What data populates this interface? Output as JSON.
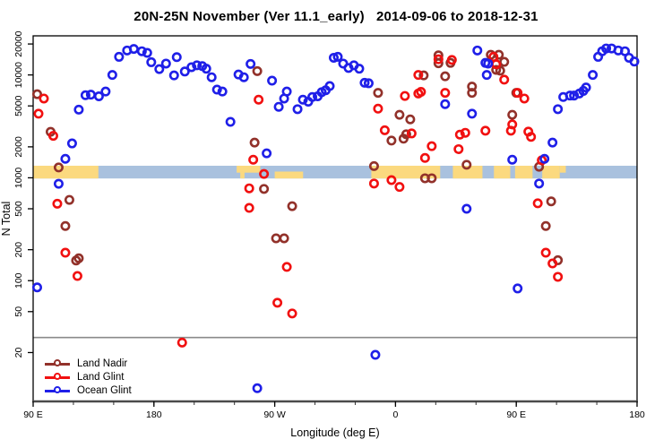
{
  "chart_data": {
    "type": "scatter",
    "title": "20N-25N November (Ver 11.1_early)   2014-09-06 to 2018-12-31",
    "xlabel": "Longitude (deg E)",
    "ylabel": "N Total",
    "x_axis": {
      "min": 90,
      "max": 540,
      "tick_values": [
        90,
        180,
        270,
        360,
        450,
        540
      ],
      "tick_labels": [
        "90 E",
        "180",
        "90 W",
        "0",
        "90 E",
        "180"
      ],
      "minor_tick_step": 30,
      "note": "longitude wraps eastward: 90E, 180, 90W, 0, 90E, 180"
    },
    "y_axis": {
      "scale": "log",
      "tick_values": [
        20,
        50,
        100,
        200,
        500,
        1000,
        2000,
        5000,
        10000,
        20000
      ],
      "tick_labels": [
        "20",
        "50",
        "100",
        "200",
        "500",
        "1000",
        "2000",
        "5000",
        "10000",
        "20000"
      ],
      "range": [
        6.7,
        24000
      ]
    },
    "reference_line_y": 28,
    "grid": "off",
    "legend_position": "bottom-left-inside",
    "map_band": {
      "description": "20N-25N latitude world-map strip drawn across plot near N=1000-1300",
      "top_value": 1310,
      "bottom_value": 985,
      "ocean_color": "#a9c1de",
      "land_color": "#fbd97f",
      "land_patches": [
        {
          "start": 0.0,
          "end": 0.108,
          "part": "full"
        },
        {
          "start": 0.337,
          "end": 0.376,
          "part": "top"
        },
        {
          "start": 0.343,
          "end": 0.35,
          "part": "bottom"
        },
        {
          "start": 0.4,
          "end": 0.447,
          "part": "bottom"
        },
        {
          "start": 0.56,
          "end": 0.674,
          "part": "full"
        },
        {
          "start": 0.695,
          "end": 0.744,
          "part": "full"
        },
        {
          "start": 0.763,
          "end": 0.79,
          "part": "full"
        },
        {
          "start": 0.798,
          "end": 0.827,
          "part": "full"
        },
        {
          "start": 0.843,
          "end": 0.872,
          "part": "full"
        },
        {
          "start": 0.872,
          "end": 0.882,
          "part": "top"
        }
      ]
    },
    "series": [
      {
        "name": "Land Nadir",
        "color": "#92312a",
        "points": [
          [
            93,
            6500
          ],
          [
            103,
            2800
          ],
          [
            109,
            1260
          ],
          [
            117,
            610
          ],
          [
            114,
            340
          ],
          [
            122,
            157
          ],
          [
            124,
            165
          ],
          [
            257,
            10900
          ],
          [
            255,
            2200
          ],
          [
            262,
            780
          ],
          [
            283,
            530
          ],
          [
            271,
            258
          ],
          [
            277,
            258
          ],
          [
            347,
            6700
          ],
          [
            363,
            4100
          ],
          [
            371,
            3700
          ],
          [
            357,
            2300
          ],
          [
            366,
            2400
          ],
          [
            368,
            2650
          ],
          [
            392,
            15500
          ],
          [
            392,
            13000
          ],
          [
            401,
            13100
          ],
          [
            397,
            9700
          ],
          [
            381,
            9900
          ],
          [
            417,
            7700
          ],
          [
            417,
            6700
          ],
          [
            344,
            1300
          ],
          [
            413,
            1340
          ],
          [
            382,
            990
          ],
          [
            387,
            990
          ],
          [
            431,
            15700
          ],
          [
            437,
            15700
          ],
          [
            441,
            13400
          ],
          [
            435,
            11200
          ],
          [
            438,
            11000
          ],
          [
            450,
            6700
          ],
          [
            447,
            4100
          ],
          [
            467,
            1280
          ],
          [
            476,
            590
          ],
          [
            472,
            340
          ],
          [
            481,
            158
          ]
        ]
      },
      {
        "name": "Land Glint",
        "color": "#f11010",
        "points": [
          [
            98,
            5900
          ],
          [
            94,
            4200
          ],
          [
            105,
            2560
          ],
          [
            108,
            560
          ],
          [
            114,
            187
          ],
          [
            123,
            111
          ],
          [
            201,
            25
          ],
          [
            258,
            5750
          ],
          [
            254,
            1500
          ],
          [
            262,
            1090
          ],
          [
            251,
            790
          ],
          [
            251,
            510
          ],
          [
            279,
            136
          ],
          [
            272,
            61
          ],
          [
            283,
            48
          ],
          [
            347,
            4700
          ],
          [
            352,
            2900
          ],
          [
            357,
            950
          ],
          [
            344,
            880
          ],
          [
            363,
            815
          ],
          [
            367,
            6250
          ],
          [
            372,
            2700
          ],
          [
            377,
            6600
          ],
          [
            377,
            10000
          ],
          [
            379,
            6850
          ],
          [
            382,
            1560
          ],
          [
            387,
            2030
          ],
          [
            392,
            14200
          ],
          [
            397,
            6700
          ],
          [
            402,
            14000
          ],
          [
            407,
            1900
          ],
          [
            408,
            2630
          ],
          [
            412,
            2740
          ],
          [
            427,
            2870
          ],
          [
            433,
            15000
          ],
          [
            435,
            12700
          ],
          [
            441,
            9000
          ],
          [
            446,
            2870
          ],
          [
            447,
            3300
          ],
          [
            451,
            6700
          ],
          [
            456,
            5900
          ],
          [
            459,
            2810
          ],
          [
            461,
            2500
          ],
          [
            466,
            565
          ],
          [
            469,
            1480
          ],
          [
            472,
            187
          ],
          [
            477,
            147
          ],
          [
            481,
            109
          ]
        ]
      },
      {
        "name": "Ocean Glint",
        "color": "#1f1fe8",
        "points": [
          [
            93,
            86
          ],
          [
            109,
            875
          ],
          [
            114,
            1530
          ],
          [
            119,
            2160
          ],
          [
            124,
            4600
          ],
          [
            129,
            6350
          ],
          [
            133,
            6430
          ],
          [
            139,
            6200
          ],
          [
            144,
            6900
          ],
          [
            149,
            10000
          ],
          [
            154,
            15000
          ],
          [
            160,
            17300
          ],
          [
            165,
            17900
          ],
          [
            171,
            17000
          ],
          [
            175,
            16400
          ],
          [
            178,
            13300
          ],
          [
            184,
            11400
          ],
          [
            189,
            12900
          ],
          [
            195,
            9900
          ],
          [
            197,
            14900
          ],
          [
            203,
            10800
          ],
          [
            208,
            11900
          ],
          [
            212,
            12400
          ],
          [
            216,
            12200
          ],
          [
            219,
            11500
          ],
          [
            223,
            9500
          ],
          [
            227,
            7200
          ],
          [
            231,
            6900
          ],
          [
            237,
            3500
          ],
          [
            243,
            10100
          ],
          [
            247,
            9500
          ],
          [
            252,
            12800
          ],
          [
            257,
            9
          ],
          [
            264,
            1730
          ],
          [
            268,
            8800
          ],
          [
            273,
            4900
          ],
          [
            277,
            5900
          ],
          [
            279,
            6900
          ],
          [
            287,
            4650
          ],
          [
            291,
            5750
          ],
          [
            295,
            5500
          ],
          [
            298,
            6100
          ],
          [
            302,
            6200
          ],
          [
            305,
            6800
          ],
          [
            308,
            7100
          ],
          [
            311,
            7800
          ],
          [
            314,
            14700
          ],
          [
            317,
            15000
          ],
          [
            321,
            12900
          ],
          [
            325,
            11700
          ],
          [
            329,
            12400
          ],
          [
            333,
            11500
          ],
          [
            337,
            8400
          ],
          [
            340,
            8300
          ],
          [
            345,
            19
          ],
          [
            397,
            5200
          ],
          [
            413,
            500
          ],
          [
            417,
            4200
          ],
          [
            421,
            17300
          ],
          [
            427,
            13100
          ],
          [
            428,
            10000
          ],
          [
            429,
            12900
          ],
          [
            447,
            1500
          ],
          [
            451,
            84
          ],
          [
            467,
            880
          ],
          [
            471,
            1530
          ],
          [
            477,
            2200
          ],
          [
            481,
            4650
          ],
          [
            485,
            6100
          ],
          [
            490,
            6300
          ],
          [
            493,
            6300
          ],
          [
            497,
            6600
          ],
          [
            500,
            7000
          ],
          [
            502,
            7550
          ],
          [
            507,
            10000
          ],
          [
            511,
            15000
          ],
          [
            514,
            17000
          ],
          [
            517,
            18100
          ],
          [
            521,
            18100
          ],
          [
            526,
            17300
          ],
          [
            531,
            17000
          ],
          [
            534,
            14700
          ],
          [
            538,
            13500
          ]
        ]
      }
    ]
  },
  "legend": {
    "items": [
      {
        "label": "Land Nadir"
      },
      {
        "label": "Land Glint"
      },
      {
        "label": "Ocean Glint"
      }
    ]
  }
}
